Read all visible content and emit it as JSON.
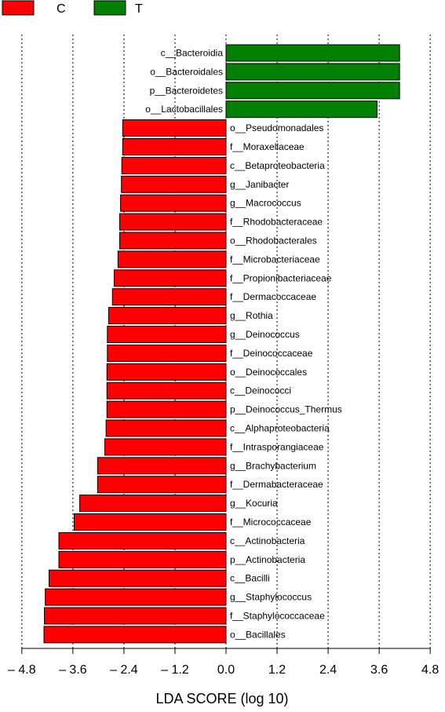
{
  "chart_data": {
    "type": "bar",
    "orientation": "horizontal",
    "xlabel": "LDA SCORE (log 10)",
    "xlim": [
      -4.8,
      4.8
    ],
    "x_ticks": [
      "– 4.8",
      "– 3.6",
      "– 2.4",
      "– 1.2",
      "0.0",
      "1.2",
      "2.4",
      "3.6",
      "4.8"
    ],
    "grid": "vertical dotted",
    "legend_position": "top-left",
    "groups": [
      {
        "name": "C",
        "color": "#ff0000"
      },
      {
        "name": "T",
        "color": "#007f00"
      }
    ],
    "bars": [
      {
        "label": "c__Bacteroidia",
        "group": "T",
        "value": 4.08
      },
      {
        "label": "o__Bacteroidales",
        "group": "T",
        "value": 4.08
      },
      {
        "label": "p__Bacteroidetes",
        "group": "T",
        "value": 4.08
      },
      {
        "label": "o__Lactobacillales",
        "group": "T",
        "value": 3.55
      },
      {
        "label": "o__Pseudomonadales",
        "group": "C",
        "value": -2.43
      },
      {
        "label": "f__Moraxellaceae",
        "group": "C",
        "value": -2.43
      },
      {
        "label": "c__Betaproteobacteria",
        "group": "C",
        "value": -2.45
      },
      {
        "label": "g__Janibacter",
        "group": "C",
        "value": -2.46
      },
      {
        "label": "g__Macrococcus",
        "group": "C",
        "value": -2.48
      },
      {
        "label": "f__Rhodobacteraceae",
        "group": "C",
        "value": -2.5
      },
      {
        "label": "o__Rhodobacterales",
        "group": "C",
        "value": -2.5
      },
      {
        "label": "f__Microbacteriaceae",
        "group": "C",
        "value": -2.54
      },
      {
        "label": "f__Propionibacteriaceae",
        "group": "C",
        "value": -2.63
      },
      {
        "label": "f__Dermacoccaceae",
        "group": "C",
        "value": -2.67
      },
      {
        "label": "g__Rothia",
        "group": "C",
        "value": -2.76
      },
      {
        "label": "g__Deinococcus",
        "group": "C",
        "value": -2.79
      },
      {
        "label": "f__Deinococcaceae",
        "group": "C",
        "value": -2.79
      },
      {
        "label": "o__Deinococcales",
        "group": "C",
        "value": -2.8
      },
      {
        "label": "c__Deinococci",
        "group": "C",
        "value": -2.8
      },
      {
        "label": "p__Deinococcus_Thermus",
        "group": "C",
        "value": -2.8
      },
      {
        "label": "c__Alphaproteobacteria",
        "group": "C",
        "value": -2.82
      },
      {
        "label": "f__Intrasporangiaceae",
        "group": "C",
        "value": -2.85
      },
      {
        "label": "g__Brachybacterium",
        "group": "C",
        "value": -3.02
      },
      {
        "label": "f__Dermabacteraceae",
        "group": "C",
        "value": -3.02
      },
      {
        "label": "g__Kocuria",
        "group": "C",
        "value": -3.44
      },
      {
        "label": "f__Micrococcaceae",
        "group": "C",
        "value": -3.57
      },
      {
        "label": "c__Actinobacteria",
        "group": "C",
        "value": -3.93
      },
      {
        "label": "p__Actinobacteria",
        "group": "C",
        "value": -3.93
      },
      {
        "label": "c__Bacilli",
        "group": "C",
        "value": -4.16
      },
      {
        "label": "g__Staphylococcus",
        "group": "C",
        "value": -4.25
      },
      {
        "label": "f__Staphylococcaceae",
        "group": "C",
        "value": -4.27
      },
      {
        "label": "o__Bacillales",
        "group": "C",
        "value": -4.28
      }
    ]
  }
}
